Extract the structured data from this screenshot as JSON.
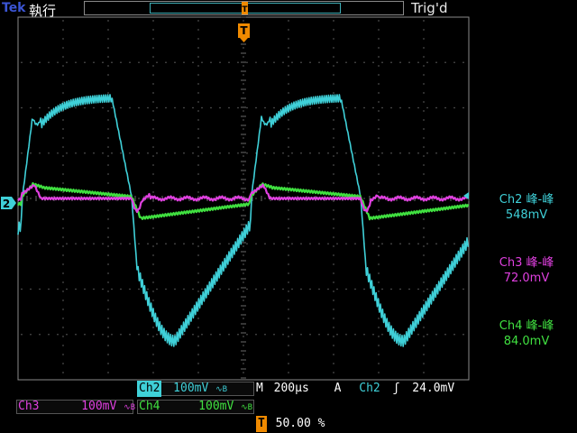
{
  "header": {
    "brand": "Tek",
    "run_status": "執行",
    "trigger_status": "Trig'd"
  },
  "markers": {
    "trigger_position": "T",
    "channel_ground": "2"
  },
  "measurements": [
    {
      "label": "Ch2 峰-峰",
      "value": "548mV",
      "color": "#3fd0d8"
    },
    {
      "label": "Ch3 峰-峰",
      "value": "72.0mV",
      "color": "#e040e0"
    },
    {
      "label": "Ch4 峰-峰",
      "value": "84.0mV",
      "color": "#40e040"
    }
  ],
  "status": {
    "ch2_label": "Ch2",
    "ch2_scale": "100mV",
    "ch3_label": "Ch3",
    "ch3_scale": "100mV",
    "ch4_label": "Ch4",
    "ch4_scale": "100mV",
    "bw_symbol": "∿B",
    "timebase_label": "M",
    "timebase": "200µs",
    "trigger_mode": "A",
    "trigger_source": "Ch2",
    "trigger_slope": "ʃ",
    "trigger_level": "24.0mV",
    "trigger_pos_label": "T",
    "trigger_pos": "50.00 %"
  },
  "colors": {
    "ch2": "#3fd0d8",
    "ch3": "#e040e0",
    "ch4": "#40e040",
    "grid": "#6a6a6a",
    "marker": "#f08a00"
  }
}
